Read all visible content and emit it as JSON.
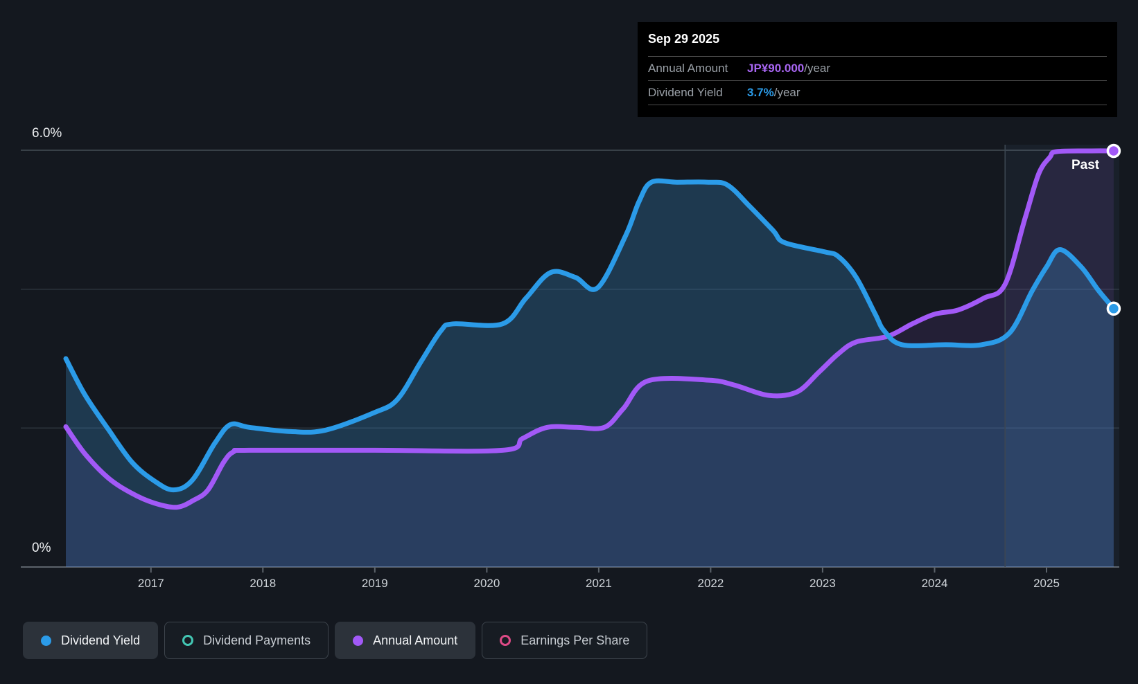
{
  "tooltip": {
    "date": "Sep 29 2025",
    "rows": [
      {
        "label": "Annual Amount",
        "value": "JP¥90.000",
        "suffix": "/year",
        "color": "#a866f2"
      },
      {
        "label": "Dividend Yield",
        "value": "3.7%",
        "suffix": "/year",
        "color": "#2b9be8"
      }
    ]
  },
  "past_label": "Past",
  "axis": {
    "y_top_label": "6.0%",
    "y_bottom_label": "0%",
    "x_labels": [
      "2017",
      "2018",
      "2019",
      "2020",
      "2021",
      "2022",
      "2023",
      "2024",
      "2025"
    ],
    "x_tick_years": [
      2017,
      2018,
      2019,
      2020,
      2021,
      2022,
      2023,
      2024,
      2025
    ]
  },
  "legend": [
    {
      "label": "Dividend Yield",
      "color": "#2b9be8",
      "marker": "filled",
      "active": true
    },
    {
      "label": "Dividend Payments",
      "color": "#43c6b3",
      "marker": "ring",
      "active": false
    },
    {
      "label": "Annual Amount",
      "color": "#a259f7",
      "marker": "filled",
      "active": true
    },
    {
      "label": "Earnings Per Share",
      "color": "#dd4a86",
      "marker": "ring",
      "active": false
    }
  ],
  "chart_data": {
    "type": "area",
    "x_domain": [
      2016.24,
      2025.65
    ],
    "y_domain": [
      0,
      6
    ],
    "y_gridlines_pct": [
      6,
      4,
      2,
      0
    ],
    "divider_x_year": 2024.63,
    "legend_position": "bottom",
    "grid": true,
    "series": [
      {
        "name": "Dividend Yield",
        "unit": "percent",
        "color": "#2b9be8",
        "fill": "rgba(58,142,205,0.28)",
        "end_value_label": "3.7%/year",
        "points": [
          [
            2016.24,
            3.0
          ],
          [
            2016.41,
            2.48
          ],
          [
            2016.62,
            1.98
          ],
          [
            2016.83,
            1.51
          ],
          [
            2017.03,
            1.24
          ],
          [
            2017.2,
            1.11
          ],
          [
            2017.37,
            1.25
          ],
          [
            2017.57,
            1.78
          ],
          [
            2017.71,
            2.05
          ],
          [
            2017.88,
            2.01
          ],
          [
            2018.25,
            1.95
          ],
          [
            2018.56,
            1.97
          ],
          [
            2018.99,
            2.22
          ],
          [
            2019.2,
            2.41
          ],
          [
            2019.41,
            2.95
          ],
          [
            2019.59,
            3.4
          ],
          [
            2019.7,
            3.5
          ],
          [
            2020.14,
            3.5
          ],
          [
            2020.35,
            3.87
          ],
          [
            2020.57,
            4.24
          ],
          [
            2020.79,
            4.17
          ],
          [
            2020.99,
            4.02
          ],
          [
            2021.24,
            4.77
          ],
          [
            2021.36,
            5.26
          ],
          [
            2021.47,
            5.54
          ],
          [
            2021.7,
            5.54
          ],
          [
            2021.98,
            5.54
          ],
          [
            2022.15,
            5.5
          ],
          [
            2022.35,
            5.19
          ],
          [
            2022.56,
            4.84
          ],
          [
            2022.66,
            4.67
          ],
          [
            2023.01,
            4.54
          ],
          [
            2023.14,
            4.47
          ],
          [
            2023.3,
            4.17
          ],
          [
            2023.47,
            3.64
          ],
          [
            2023.55,
            3.4
          ],
          [
            2023.71,
            3.2
          ],
          [
            2024.1,
            3.2
          ],
          [
            2024.42,
            3.2
          ],
          [
            2024.67,
            3.37
          ],
          [
            2024.87,
            3.97
          ],
          [
            2025.0,
            4.32
          ],
          [
            2025.12,
            4.57
          ],
          [
            2025.31,
            4.32
          ],
          [
            2025.46,
            3.99
          ],
          [
            2025.6,
            3.72
          ]
        ]
      },
      {
        "name": "Annual Amount",
        "unit": "percent-axis-equivalent",
        "color": "#a259f7",
        "fill": "rgba(160,92,244,0.11)",
        "end_value_label": "JP¥90.000/year",
        "points": [
          [
            2016.24,
            2.02
          ],
          [
            2016.41,
            1.63
          ],
          [
            2016.62,
            1.28
          ],
          [
            2016.83,
            1.06
          ],
          [
            2017.03,
            0.92
          ],
          [
            2017.23,
            0.86
          ],
          [
            2017.38,
            0.96
          ],
          [
            2017.51,
            1.11
          ],
          [
            2017.65,
            1.51
          ],
          [
            2017.74,
            1.66
          ],
          [
            2017.88,
            1.68
          ],
          [
            2019.0,
            1.68
          ],
          [
            2020.14,
            1.68
          ],
          [
            2020.32,
            1.85
          ],
          [
            2020.54,
            2.01
          ],
          [
            2020.8,
            2.01
          ],
          [
            2021.05,
            2.01
          ],
          [
            2021.22,
            2.28
          ],
          [
            2021.44,
            2.68
          ],
          [
            2021.98,
            2.69
          ],
          [
            2022.21,
            2.62
          ],
          [
            2022.52,
            2.47
          ],
          [
            2022.77,
            2.52
          ],
          [
            2022.97,
            2.81
          ],
          [
            2023.14,
            3.07
          ],
          [
            2023.3,
            3.24
          ],
          [
            2023.58,
            3.32
          ],
          [
            2023.8,
            3.5
          ],
          [
            2024.0,
            3.64
          ],
          [
            2024.21,
            3.7
          ],
          [
            2024.44,
            3.87
          ],
          [
            2024.63,
            4.07
          ],
          [
            2024.81,
            5.03
          ],
          [
            2024.93,
            5.66
          ],
          [
            2025.03,
            5.9
          ],
          [
            2025.09,
            5.98
          ],
          [
            2025.4,
            5.99
          ],
          [
            2025.6,
            5.99
          ]
        ]
      }
    ],
    "inactive_series": [
      "Dividend Payments",
      "Earnings Per Share"
    ]
  },
  "colors": {
    "background": "#14181f",
    "grid_strong": "#454d55",
    "grid_faint": "#2d343c",
    "axis_line": "#5c636b",
    "x_label": "#ced3d8",
    "divider": "#3d4752",
    "future_overlay": "rgba(126,178,234,0.055)",
    "tooltip_bg": "#000000"
  }
}
